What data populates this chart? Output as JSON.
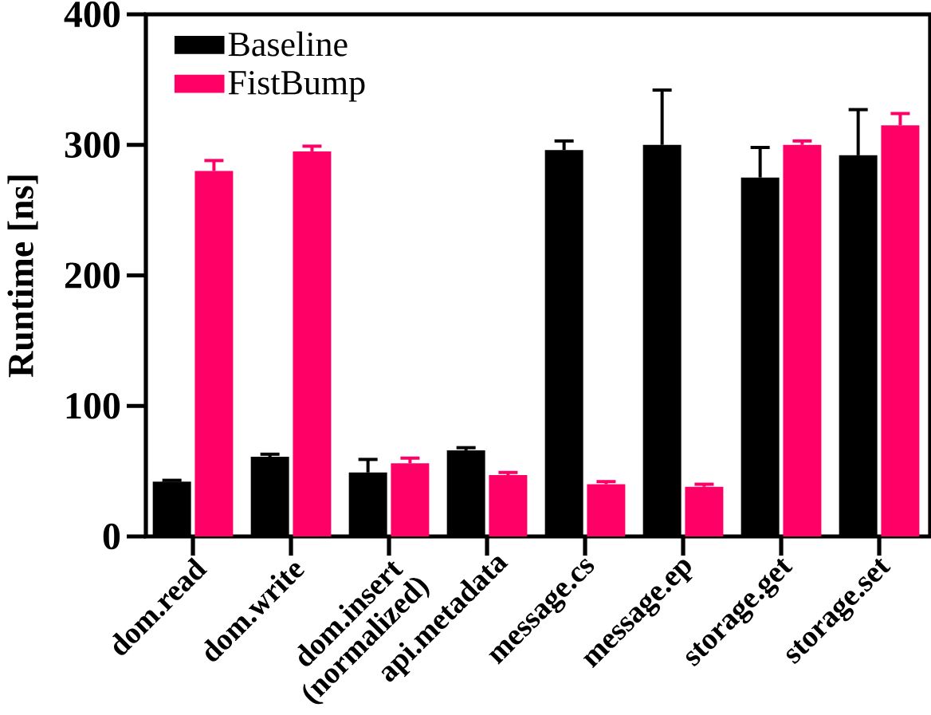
{
  "chart_data": {
    "type": "bar",
    "ylabel": "Runtime [ns]",
    "categories": [
      "dom.read",
      "dom.write",
      "dom.insert (normalized)",
      "api.metadata",
      "message.cs",
      "message.ep",
      "storage.get",
      "storage.set"
    ],
    "series": [
      {
        "name": "Baseline",
        "color": "#000000",
        "values": [
          42,
          61,
          49,
          66,
          296,
          300,
          275,
          292
        ],
        "errors": [
          [
            42,
            43
          ],
          [
            61,
            63
          ],
          [
            49,
            59
          ],
          [
            66,
            68
          ],
          [
            296,
            303
          ],
          [
            300,
            342
          ],
          [
            275,
            298
          ],
          [
            292,
            327
          ]
        ]
      },
      {
        "name": "FistBump",
        "color": "#ff0066",
        "values": [
          280,
          295,
          56,
          47,
          40,
          38,
          300,
          315
        ],
        "errors": [
          [
            280,
            288
          ],
          [
            295,
            299
          ],
          [
            56,
            60
          ],
          [
            47,
            49
          ],
          [
            40,
            42
          ],
          [
            38,
            40
          ],
          [
            300,
            303
          ],
          [
            315,
            324
          ]
        ]
      }
    ],
    "ylim": [
      0,
      400
    ],
    "yticks": [
      0,
      100,
      200,
      300,
      400
    ],
    "legend": "top left",
    "grid": false
  }
}
